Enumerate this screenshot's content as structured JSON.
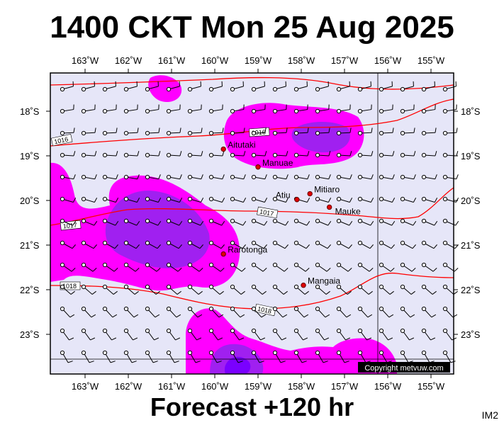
{
  "title": "1400 CKT Mon 25 Aug 2025",
  "footer": "Forecast +120 hr",
  "image_tag": "IM2",
  "copyright": "Copyright metvuw.com",
  "lon_labels": [
    "163˚W",
    "162˚W",
    "161˚W",
    "160˚W",
    "159˚W",
    "158˚W",
    "157˚W",
    "156˚W",
    "155˚W"
  ],
  "lat_labels": [
    "18˚S",
    "19˚S",
    "20˚S",
    "21˚S",
    "22˚S",
    "23˚S"
  ],
  "places": [
    {
      "name": "Aitutaki",
      "lon": -159.8,
      "lat": -18.85
    },
    {
      "name": "Manuae",
      "lon": -159.0,
      "lat": -19.25
    },
    {
      "name": "Atiu",
      "lon": -158.1,
      "lat": -19.98
    },
    {
      "name": "Mitiaro",
      "lon": -157.8,
      "lat": -19.85
    },
    {
      "name": "Mauke",
      "lon": -157.35,
      "lat": -20.15
    },
    {
      "name": "Rarotonga",
      "lon": -159.8,
      "lat": -21.2
    },
    {
      "name": "Mangaia",
      "lon": -157.95,
      "lat": -21.9
    }
  ],
  "isobar_labels": [
    "1016",
    "1016",
    "1017",
    "1017",
    "1018",
    "1018"
  ],
  "colors": {
    "background": "#e6e6f8",
    "rain_light": "#ff00ff",
    "rain_medium": "#a020f0",
    "rain_heavy": "#7a00ff",
    "isobar": "#ff0000"
  }
}
